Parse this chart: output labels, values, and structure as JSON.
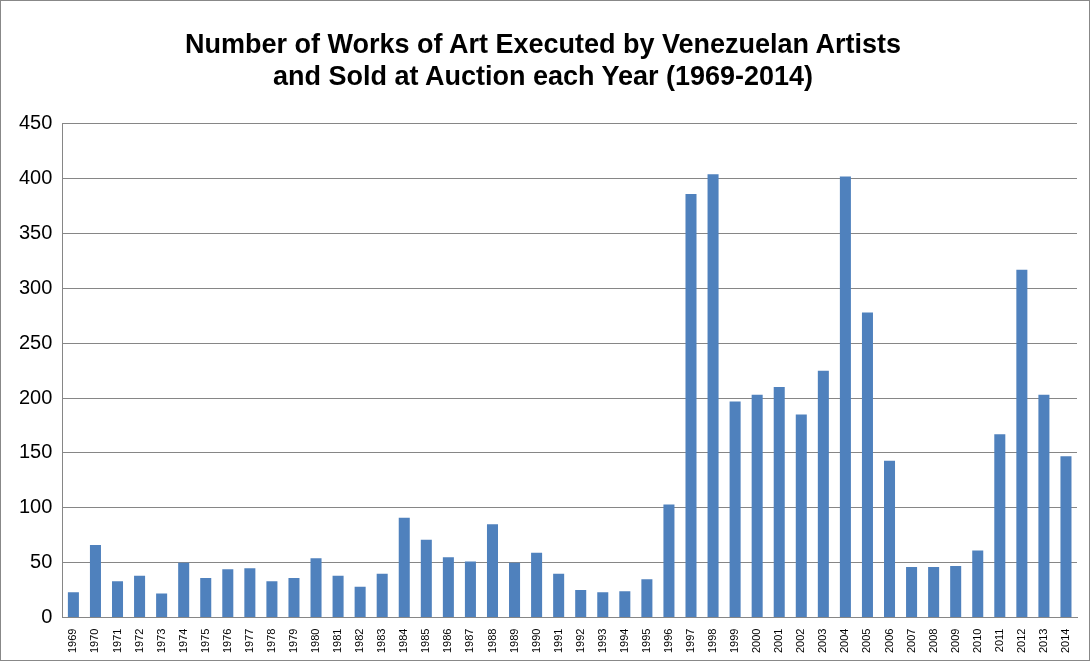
{
  "chart_data": {
    "type": "bar",
    "title": [
      "Number of Works of Art Executed by Venezuelan Artists",
      "and Sold at Auction each Year (1969-2014)"
    ],
    "categories": [
      "1969",
      "1970",
      "1971",
      "1972",
      "1973",
      "1974",
      "1975",
      "1976",
      "1977",
      "1978",
      "1979",
      "1980",
      "1981",
      "1982",
      "1983",
      "1984",
      "1985",
      "1986",
      "1987",
      "1988",
      "1989",
      "1990",
      "1991",
      "1992",
      "1993",
      "1994",
      "1995",
      "1996",
      "1997",
      "1998",
      "1999",
      "2000",
      "2001",
      "2002",
      "2003",
      "2004",
      "2005",
      "2006",
      "2007",
      "2008",
      "2009",
      "2010",
      "2011",
      "2012",
      "2013",
      "2014"
    ],
    "values": [
      23,
      66,
      33,
      38,
      22,
      50,
      36,
      44,
      45,
      33,
      36,
      54,
      38,
      28,
      40,
      91,
      71,
      55,
      51,
      85,
      50,
      59,
      40,
      25,
      23,
      24,
      35,
      103,
      386,
      404,
      197,
      203,
      210,
      185,
      225,
      402,
      278,
      143,
      46,
      46,
      47,
      61,
      167,
      317,
      203,
      147
    ],
    "color": "#4f81bd",
    "ylim": [
      0,
      450
    ],
    "yticks": [
      0,
      50,
      100,
      150,
      200,
      250,
      300,
      350,
      400,
      450
    ],
    "grid": "y",
    "legend": false
  }
}
